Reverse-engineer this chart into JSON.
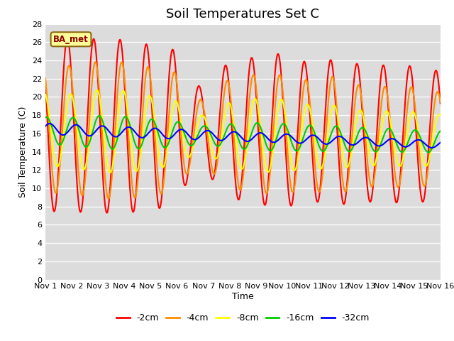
{
  "title": "Soil Temperatures Set C",
  "xlabel": "Time",
  "ylabel": "Soil Temperature (C)",
  "ylim": [
    0,
    28
  ],
  "yticks": [
    0,
    2,
    4,
    6,
    8,
    10,
    12,
    14,
    16,
    18,
    20,
    22,
    24,
    26,
    28
  ],
  "xtick_labels": [
    "Nov 1",
    "Nov 2",
    "Nov 3",
    "Nov 4",
    "Nov 5",
    "Nov 6",
    "Nov 7",
    "Nov 8",
    "Nov 9",
    "Nov 10",
    "Nov 11",
    "Nov 12",
    "Nov 13",
    "Nov 14",
    "Nov 15",
    "Nov 16"
  ],
  "series_colors": [
    "#FF0000",
    "#FF8C00",
    "#FFFF00",
    "#00CC00",
    "#0000FF"
  ],
  "series_labels": [
    "-2cm",
    "-4cm",
    "-8cm",
    "-16cm",
    "-32cm"
  ],
  "legend_label": "BA_met",
  "background_color": "#DCDCDC",
  "title_fontsize": 13,
  "axis_fontsize": 9,
  "tick_fontsize": 8
}
